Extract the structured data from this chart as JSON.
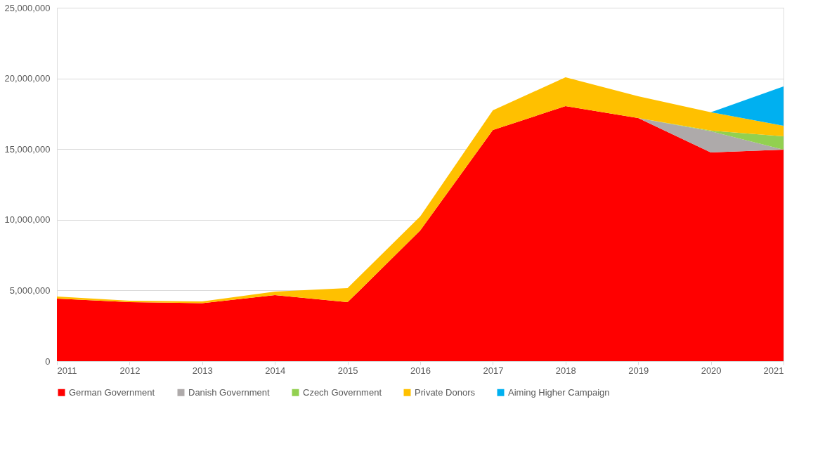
{
  "chart_data": {
    "type": "area",
    "stacked": true,
    "x": [
      2011,
      2012,
      2013,
      2014,
      2015,
      2016,
      2017,
      2018,
      2019,
      2020,
      2021
    ],
    "xlim": [
      2011,
      2021
    ],
    "xticks": [
      2011,
      2012,
      2013,
      2014,
      2015,
      2016,
      2017,
      2018,
      2019,
      2020,
      2021
    ],
    "ylim": [
      0,
      25000000
    ],
    "yticks": [
      0,
      {
        "value": 5000000,
        "label": "5,000,000"
      },
      {
        "value": 10000000,
        "label": "10,000,000"
      },
      {
        "value": 15000000,
        "label": "15,000,000"
      },
      {
        "value": 20000000,
        "label": "20,000,000"
      },
      {
        "value": 25000000,
        "label": "25,000,000"
      }
    ],
    "grid": "y",
    "legend": "bottom",
    "series": [
      {
        "name": "German Government",
        "color": "#ff0000",
        "values": [
          4420000,
          4170000,
          4100000,
          4670000,
          4170000,
          9240000,
          16350000,
          18040000,
          17200000,
          14760000,
          14960000
        ]
      },
      {
        "name": "Danish Government",
        "color": "#aeaaaa",
        "values": [
          null,
          null,
          null,
          null,
          null,
          null,
          null,
          null,
          0,
          1500000,
          0
        ]
      },
      {
        "name": "Czech Government",
        "color": "#92d050",
        "values": [
          null,
          null,
          null,
          null,
          null,
          null,
          null,
          null,
          0,
          50000,
          940000
        ]
      },
      {
        "name": "Private Donors",
        "color": "#ffc000",
        "values": [
          150000,
          100000,
          120000,
          250000,
          1000000,
          1000000,
          1390000,
          2040000,
          1540000,
          1300000,
          750000
        ]
      },
      {
        "name": "Aiming Higher Campaign",
        "color": "#00b0f0",
        "values": [
          null,
          null,
          null,
          null,
          null,
          null,
          null,
          null,
          null,
          0,
          2780000
        ]
      }
    ]
  }
}
